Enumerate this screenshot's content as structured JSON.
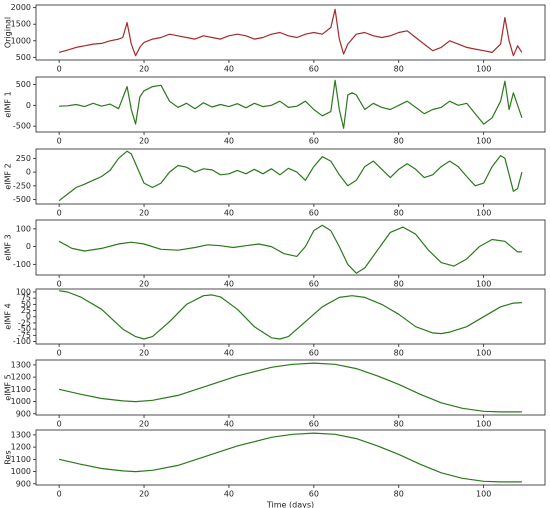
{
  "chart_data": [
    {
      "type": "line",
      "ylabel": "Original",
      "color": "#a52a2a",
      "xlim": [
        -5.45,
        114.45
      ],
      "xticks": [
        0,
        20,
        40,
        60,
        80,
        100
      ],
      "ylim": [
        420,
        2080
      ],
      "yticks": [
        500,
        1000,
        1500,
        2000
      ],
      "x": [
        0,
        2,
        4,
        6,
        8,
        10,
        12,
        14,
        15,
        16,
        17,
        18,
        19,
        20,
        22,
        24,
        26,
        28,
        30,
        32,
        34,
        36,
        38,
        40,
        42,
        44,
        46,
        48,
        50,
        52,
        54,
        56,
        58,
        60,
        62,
        64,
        65,
        66,
        67,
        68,
        70,
        72,
        74,
        76,
        78,
        80,
        82,
        84,
        86,
        88,
        90,
        92,
        94,
        96,
        98,
        100,
        102,
        104,
        105,
        106,
        107,
        108,
        109
      ],
      "values": [
        650,
        720,
        800,
        850,
        900,
        920,
        1000,
        1050,
        1100,
        1550,
        900,
        550,
        800,
        950,
        1050,
        1100,
        1200,
        1150,
        1100,
        1050,
        1150,
        1100,
        1050,
        1150,
        1200,
        1150,
        1050,
        1100,
        1200,
        1250,
        1150,
        1100,
        1200,
        1250,
        1200,
        1400,
        1950,
        1050,
        600,
        900,
        1200,
        1250,
        1150,
        1100,
        1150,
        1250,
        1300,
        1100,
        900,
        700,
        800,
        1000,
        900,
        800,
        750,
        700,
        650,
        900,
        1700,
        1000,
        550,
        850,
        650
      ]
    },
    {
      "type": "line",
      "ylabel": "eIMF 1",
      "color": "#2a7a1a",
      "xlim": [
        -5.45,
        114.45
      ],
      "xticks": [
        0,
        20,
        40,
        60,
        80,
        100
      ],
      "ylim": [
        -640,
        680
      ],
      "yticks": [
        -500,
        0,
        500
      ],
      "x": [
        0,
        2,
        4,
        6,
        8,
        10,
        12,
        14,
        16,
        17,
        18,
        19,
        20,
        22,
        24,
        26,
        28,
        30,
        32,
        34,
        36,
        38,
        40,
        42,
        44,
        46,
        48,
        50,
        52,
        54,
        56,
        58,
        60,
        62,
        64,
        65,
        66,
        67,
        68,
        69,
        70,
        72,
        74,
        76,
        78,
        80,
        82,
        84,
        86,
        88,
        90,
        92,
        94,
        96,
        98,
        100,
        102,
        104,
        105,
        106,
        107,
        109
      ],
      "values": [
        -20,
        -10,
        20,
        -30,
        50,
        -20,
        30,
        -80,
        450,
        -100,
        -450,
        200,
        350,
        450,
        480,
        100,
        -50,
        50,
        -80,
        60,
        -40,
        20,
        -30,
        40,
        -60,
        50,
        -30,
        0,
        100,
        -50,
        -20,
        100,
        -100,
        -250,
        -150,
        600,
        -100,
        -550,
        250,
        300,
        250,
        -100,
        50,
        -50,
        -100,
        0,
        100,
        -50,
        -200,
        -100,
        -50,
        100,
        0,
        50,
        -200,
        -450,
        -300,
        100,
        580,
        -100,
        300,
        -300
      ]
    },
    {
      "type": "line",
      "ylabel": "eIMF 2",
      "color": "#2a7a1a",
      "xlim": [
        -5.45,
        114.45
      ],
      "xticks": [
        0,
        20,
        40,
        60,
        80,
        100
      ],
      "ylim": [
        -580,
        420
      ],
      "yticks": [
        -500,
        -250,
        0,
        250
      ],
      "x": [
        0,
        2,
        4,
        6,
        8,
        10,
        12,
        14,
        16,
        17,
        18,
        20,
        22,
        24,
        26,
        28,
        30,
        32,
        34,
        36,
        38,
        40,
        42,
        44,
        46,
        48,
        50,
        52,
        54,
        56,
        58,
        60,
        62,
        64,
        66,
        68,
        70,
        72,
        74,
        76,
        78,
        80,
        82,
        84,
        86,
        88,
        90,
        92,
        94,
        96,
        98,
        100,
        102,
        104,
        105,
        107,
        108,
        109
      ],
      "values": [
        -520,
        -400,
        -280,
        -220,
        -150,
        -80,
        30,
        250,
        380,
        330,
        150,
        -200,
        -280,
        -200,
        0,
        120,
        90,
        0,
        60,
        40,
        -50,
        -30,
        30,
        -30,
        50,
        -30,
        60,
        -50,
        70,
        0,
        -150,
        100,
        280,
        200,
        -50,
        -250,
        -150,
        100,
        200,
        50,
        -100,
        50,
        150,
        50,
        -100,
        -50,
        100,
        200,
        100,
        -80,
        -250,
        -200,
        100,
        300,
        250,
        -350,
        -300,
        0
      ]
    },
    {
      "type": "line",
      "ylabel": "eIMF 3",
      "color": "#2a7a1a",
      "xlim": [
        -5.45,
        114.45
      ],
      "xticks": [
        0,
        20,
        40,
        60,
        80,
        100
      ],
      "ylim": [
        -160,
        150
      ],
      "yticks": [
        -100,
        0,
        100
      ],
      "x": [
        0,
        3,
        6,
        10,
        14,
        17,
        20,
        24,
        28,
        32,
        35,
        38,
        41,
        44,
        47,
        50,
        53,
        56,
        58,
        60,
        62,
        64,
        66,
        68,
        70,
        72,
        75,
        78,
        81,
        84,
        87,
        90,
        93,
        96,
        99,
        102,
        105,
        108,
        109
      ],
      "values": [
        30,
        -10,
        -25,
        -10,
        15,
        25,
        15,
        -15,
        -20,
        -5,
        10,
        5,
        -5,
        5,
        15,
        0,
        -40,
        -55,
        0,
        90,
        120,
        90,
        0,
        -100,
        -150,
        -120,
        -20,
        80,
        110,
        70,
        -20,
        -90,
        -110,
        -70,
        0,
        40,
        30,
        -30,
        -30
      ]
    },
    {
      "type": "line",
      "ylabel": "eIMF 4",
      "color": "#2a7a1a",
      "xlim": [
        -5.45,
        114.45
      ],
      "xticks": [
        0,
        20,
        40,
        60,
        80,
        100
      ],
      "ylim": [
        -110,
        112
      ],
      "yticks": [
        -100,
        -75,
        -50,
        -25,
        0,
        25,
        50,
        75,
        100
      ],
      "x": [
        0,
        2,
        5,
        10,
        15,
        18,
        20,
        22,
        26,
        30,
        34,
        36,
        38,
        42,
        46,
        50,
        52,
        54,
        58,
        62,
        66,
        69,
        72,
        76,
        80,
        84,
        88,
        90,
        92,
        96,
        100,
        104,
        107,
        109
      ],
      "values": [
        105,
        100,
        80,
        30,
        -50,
        -80,
        -90,
        -80,
        -20,
        50,
        85,
        88,
        80,
        30,
        -40,
        -85,
        -90,
        -80,
        -20,
        40,
        78,
        85,
        78,
        50,
        10,
        -40,
        -65,
        -68,
        -62,
        -40,
        0,
        40,
        55,
        57
      ]
    },
    {
      "type": "line",
      "ylabel": "eIMF 5",
      "color": "#2a7a1a",
      "xlim": [
        -5.45,
        114.45
      ],
      "xticks": [
        0,
        20,
        40,
        60,
        80,
        100
      ],
      "ylim": [
        890,
        1340
      ],
      "yticks": [
        900,
        1000,
        1100,
        1200,
        1300
      ],
      "x": [
        0,
        5,
        10,
        15,
        18,
        22,
        28,
        35,
        42,
        50,
        55,
        60,
        65,
        70,
        75,
        80,
        85,
        90,
        95,
        100,
        104,
        109
      ],
      "values": [
        1100,
        1060,
        1025,
        1005,
        1000,
        1010,
        1050,
        1130,
        1210,
        1280,
        1305,
        1315,
        1305,
        1270,
        1210,
        1140,
        1060,
        990,
        945,
        920,
        915,
        915
      ]
    },
    {
      "type": "line",
      "ylabel": "Res",
      "xlabel": "Time (days)",
      "color": "#2a7a1a",
      "xlim": [
        -5.45,
        114.45
      ],
      "xticks": [
        0,
        20,
        40,
        60,
        80,
        100
      ],
      "ylim": [
        890,
        1340
      ],
      "yticks": [
        900,
        1000,
        1100,
        1200,
        1300
      ],
      "x": [
        0,
        5,
        10,
        15,
        18,
        22,
        28,
        35,
        42,
        50,
        55,
        60,
        65,
        70,
        75,
        80,
        85,
        90,
        95,
        100,
        104,
        109
      ],
      "values": [
        1100,
        1060,
        1025,
        1005,
        1000,
        1010,
        1050,
        1130,
        1210,
        1280,
        1305,
        1315,
        1305,
        1270,
        1210,
        1140,
        1060,
        990,
        945,
        920,
        915,
        915
      ]
    }
  ]
}
